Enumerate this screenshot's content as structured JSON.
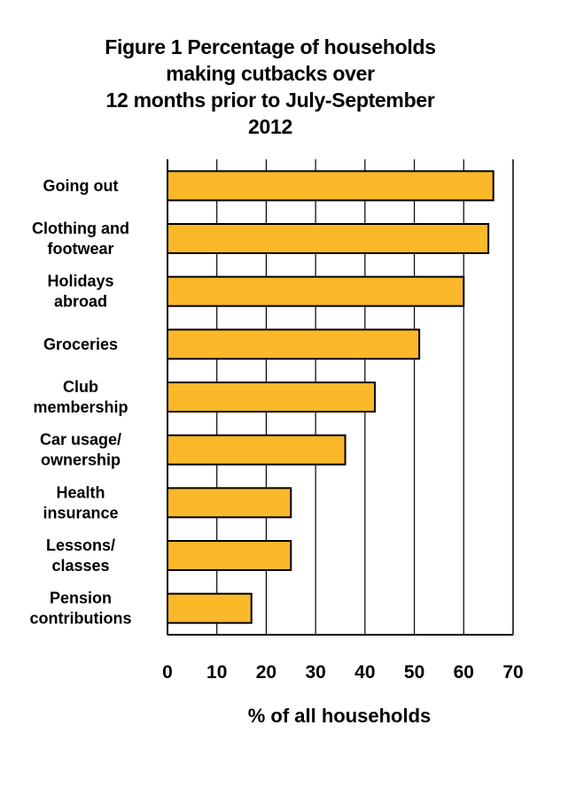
{
  "chart_data": {
    "type": "bar",
    "orientation": "horizontal",
    "title_lines": [
      "Figure 1 Percentage of households",
      "making  cutbacks over",
      "12 months prior to July-September",
      "2012"
    ],
    "categories": [
      [
        "Going out"
      ],
      [
        "Clothing and",
        "footwear"
      ],
      [
        "Holidays",
        "abroad"
      ],
      [
        "Groceries"
      ],
      [
        "Club",
        "membership"
      ],
      [
        "Car usage/",
        "ownership"
      ],
      [
        "Health",
        "insurance"
      ],
      [
        "Lessons/",
        "classes"
      ],
      [
        "Pension",
        "contributions"
      ]
    ],
    "values": [
      66,
      65,
      60,
      51,
      42,
      36,
      25,
      25,
      17
    ],
    "xlabel": "% of all households",
    "xlim": [
      0,
      70
    ],
    "xticks": [
      "0",
      "10",
      "20",
      "30",
      "40",
      "50",
      "60",
      "70"
    ],
    "grid": "vertical",
    "bar_color": "#FBB829",
    "bar_edge_color": "#000000"
  }
}
